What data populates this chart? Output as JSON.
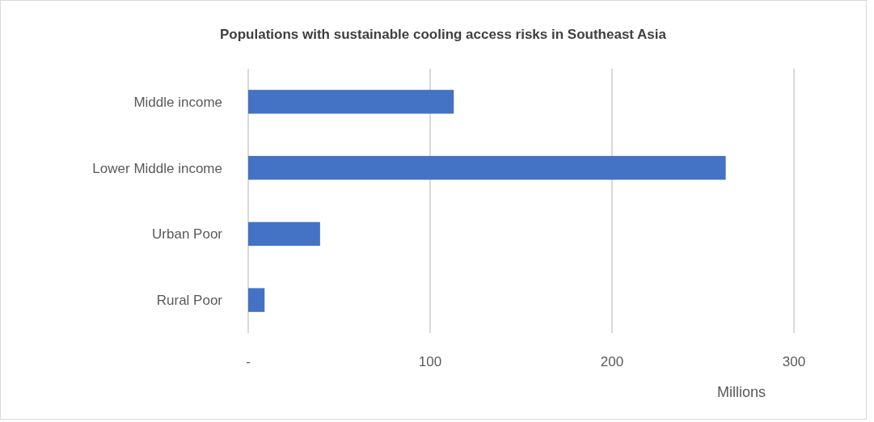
{
  "chart_data": {
    "type": "bar",
    "orientation": "horizontal",
    "title": "Populations with sustainable cooling access risks in Southeast Asia",
    "xlabel": "Millions",
    "categories": [
      "Middle income",
      "Lower Middle income",
      "Urban Poor",
      "Rural Poor"
    ],
    "values": [
      113,
      262.5,
      39.5,
      9
    ],
    "color": "#4472c4",
    "xlim": [
      0,
      300
    ],
    "xticks": [
      {
        "value": 0,
        "label": "-"
      },
      100,
      200,
      300
    ],
    "grid": "x"
  }
}
